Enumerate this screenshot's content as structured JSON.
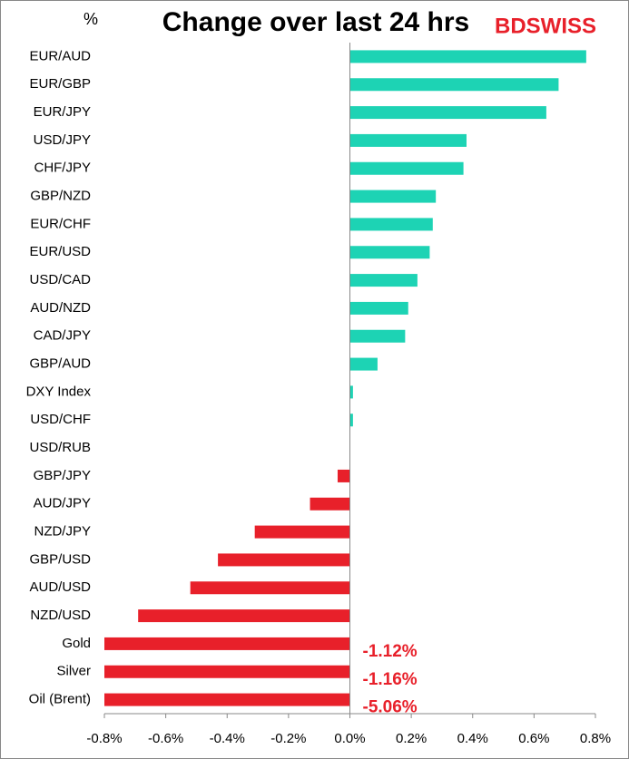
{
  "chart_data": {
    "type": "hbar",
    "title": "Change over last 24 hrs",
    "unit_label": "%",
    "brand": "BDSWISS",
    "categories": [
      "EUR/AUD",
      "EUR/GBP",
      "EUR/JPY",
      "USD/JPY",
      "CHF/JPY",
      "GBP/NZD",
      "EUR/CHF",
      "EUR/USD",
      "USD/CAD",
      "AUD/NZD",
      "CAD/JPY",
      "GBP/AUD",
      "DXY Index",
      "USD/CHF",
      "USD/RUB",
      "GBP/JPY",
      "AUD/JPY",
      "NZD/JPY",
      "GBP/USD",
      "AUD/USD",
      "NZD/USD",
      "Gold",
      "Silver",
      "Oil (Brent)"
    ],
    "values": [
      0.77,
      0.68,
      0.64,
      0.38,
      0.37,
      0.28,
      0.27,
      0.26,
      0.22,
      0.19,
      0.18,
      0.09,
      0.01,
      0.01,
      0,
      -0.04,
      -0.13,
      -0.31,
      -0.43,
      -0.52,
      -0.69,
      -1.12,
      -1.16,
      -5.06
    ],
    "value_labels": [
      null,
      null,
      null,
      null,
      null,
      null,
      null,
      null,
      null,
      null,
      null,
      null,
      null,
      null,
      null,
      null,
      null,
      null,
      null,
      null,
      null,
      "-1.12%",
      "-1.16%",
      "-5.06%"
    ],
    "color_positive": "#1dd3b4",
    "color_negative": "#e8202a",
    "xlim": [
      -0.8,
      0.8
    ],
    "xticks": [
      {
        "value": -0.8,
        "label": "-0.8%"
      },
      {
        "value": -0.6,
        "label": "-0.6%"
      },
      {
        "value": -0.4,
        "label": "-0.4%"
      },
      {
        "value": -0.2,
        "label": "-0.2%"
      },
      {
        "value": 0,
        "label": "0.0%"
      },
      {
        "value": 0.2,
        "label": "0.2%"
      },
      {
        "value": 0.4,
        "label": "0.4%"
      },
      {
        "value": 0.6,
        "label": "0.6%"
      },
      {
        "value": 0.8,
        "label": "0.8%"
      }
    ]
  }
}
